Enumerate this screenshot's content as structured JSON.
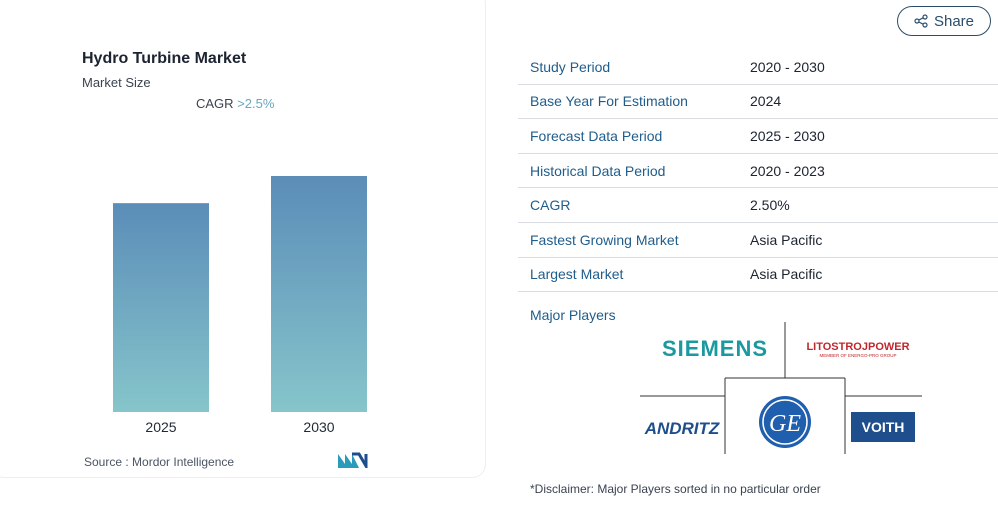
{
  "chart_data": {
    "type": "bar",
    "title": "Hydro Turbine Market",
    "subtitle": "Market Size",
    "annotation": {
      "label": "CAGR",
      "value": ">2.5%"
    },
    "categories": [
      "2025",
      "2030"
    ],
    "values": [
      1.0,
      1.13
    ],
    "value_note": "relative bar heights only; no axis values printed",
    "grid": false,
    "colors": {
      "bar_top": "#5b8db8",
      "bar_bottom": "#86c5cb"
    }
  },
  "source": "Source :  Mordor Intelligence",
  "share_label": "Share",
  "info_rows": [
    {
      "key": "Study Period",
      "value": "2020 - 2030"
    },
    {
      "key": "Base Year For Estimation",
      "value": "2024"
    },
    {
      "key": "Forecast Data Period",
      "value": "2025 - 2030"
    },
    {
      "key": "Historical Data Period",
      "value": "2020 - 2023"
    },
    {
      "key": "CAGR",
      "value": "2.50%"
    },
    {
      "key": "Fastest Growing Market",
      "value": "Asia Pacific"
    },
    {
      "key": "Largest Market",
      "value": "Asia Pacific"
    }
  ],
  "major_players_label": "Major Players",
  "players": {
    "siemens": "SIEMENS",
    "litostroj": "LITOSTROJPOWER",
    "litostroj_sub": "MEMBER OF ENERGO-PRO GROUP",
    "andritz": "ANDRITZ",
    "ge": "GE",
    "voith": "VOITH"
  },
  "disclaimer": "*Disclaimer: Major Players sorted in no particular order",
  "colors": {
    "accent": "#1f5d8c",
    "siemens": "#1a9aa0",
    "litostroj": "#c0272d",
    "voith": "#1f4e8c",
    "andritz": "#1f4e8c",
    "ge": "#1f5fae"
  }
}
